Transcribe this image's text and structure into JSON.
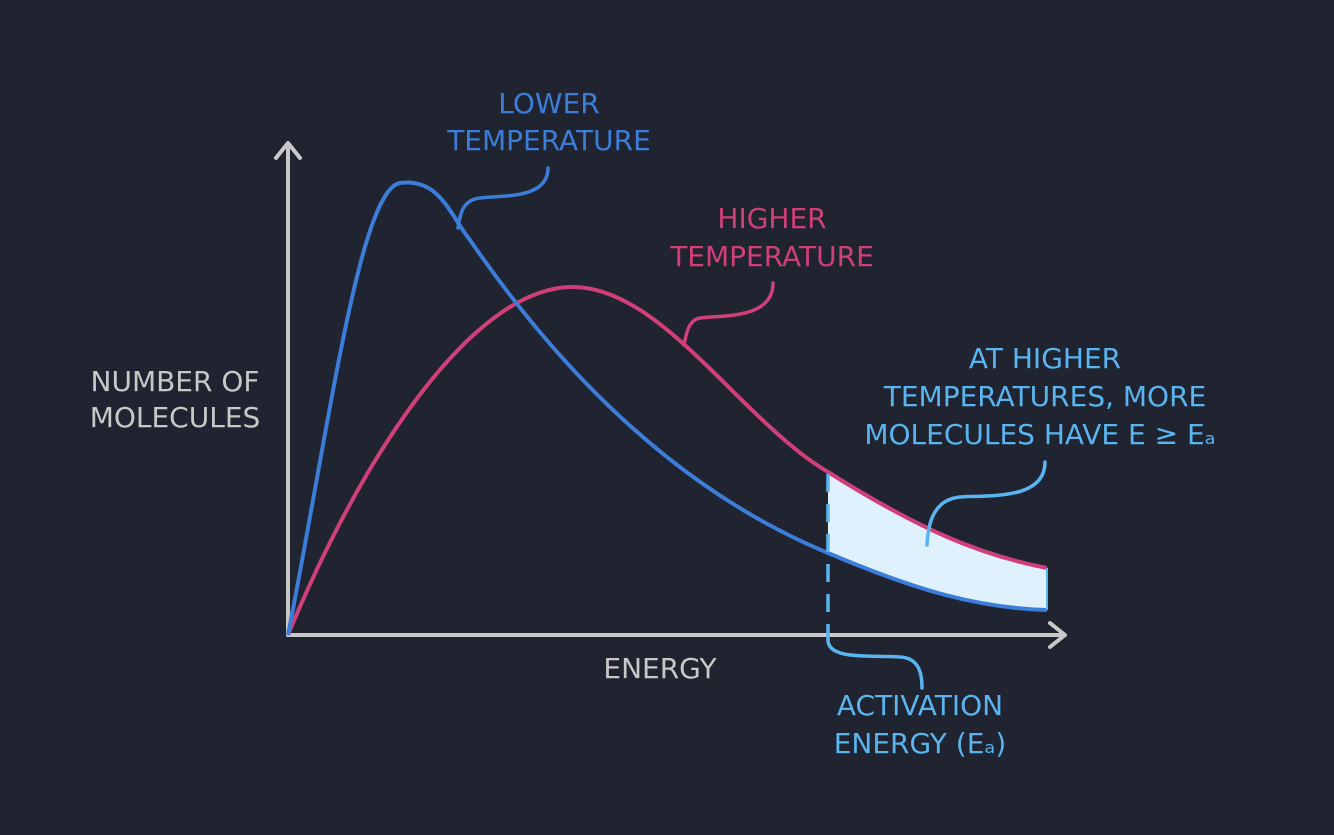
{
  "labels": {
    "lower_temperature": [
      "LOWER",
      "TEMPERATURE"
    ],
    "higher_temperature": [
      "HIGHER",
      "TEMPERATURE"
    ],
    "y_axis": [
      "NUMBER OF",
      "MOLECULES"
    ],
    "x_axis": "ENERGY",
    "activation_energy": [
      "ACTIVATION",
      "ENERGY (Eₐ)"
    ],
    "annotation": [
      "AT HIGHER",
      "TEMPERATURES, MORE",
      "MOLECULES HAVE E ≥ Eₐ"
    ]
  }
}
